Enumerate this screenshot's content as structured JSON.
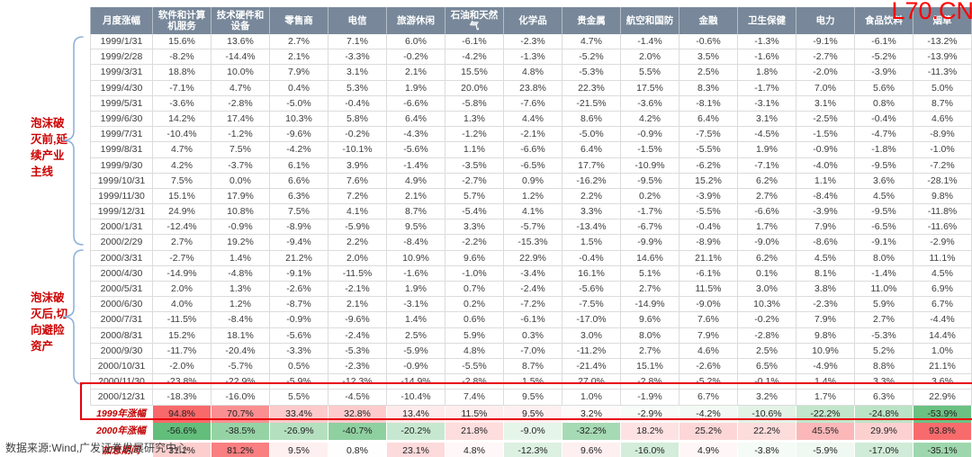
{
  "watermark": "L70.CN",
  "source_note": "数据来源:Wind,广发证券发展研究中心",
  "annotations": {
    "pre_bubble": "泡沫破灭前,延续产业主线",
    "post_bubble": "泡沫破灭后,切向避险资产"
  },
  "colors": {
    "header_bg": "#78889A",
    "heat_positive": "#F8696B",
    "heat_negative": "#63BE7B",
    "heat_mid": "#FFFFFF",
    "summary_label_red": "#C00000",
    "emphasis_box_red": "#E8000A",
    "brace_blue": "#8FB2D9",
    "watermark_red": "#FF0000"
  },
  "chart_data": {
    "type": "heatmap",
    "title": "",
    "value_format": "percent_1dp",
    "heat_scale": {
      "min": -56.6,
      "max": 94.8,
      "mid": 0
    },
    "columns": [
      "月度涨幅",
      "软件和计算机服务",
      "技术硬件和设备",
      "零售商",
      "电信",
      "旅游休闲",
      "石油和天然气",
      "化学品",
      "贵金属",
      "航空和国防",
      "金融",
      "卫生保健",
      "电力",
      "食品饮料",
      "烟草"
    ],
    "monthly_rows": [
      {
        "date": "1999/1/31",
        "values": [
          15.6,
          13.6,
          2.7,
          7.1,
          6.0,
          -6.1,
          -2.3,
          4.7,
          -1.4,
          -0.6,
          -1.3,
          -9.1,
          -6.1,
          -13.2
        ]
      },
      {
        "date": "1999/2/28",
        "values": [
          -8.2,
          -14.4,
          2.1,
          -3.3,
          -0.2,
          -4.2,
          -1.3,
          -5.2,
          2.0,
          3.5,
          -1.6,
          -2.7,
          -5.2,
          -13.9
        ]
      },
      {
        "date": "1999/3/31",
        "values": [
          18.8,
          10.0,
          7.9,
          3.1,
          2.1,
          15.5,
          4.8,
          -5.3,
          5.5,
          2.5,
          1.8,
          -2.0,
          -3.9,
          -11.3
        ]
      },
      {
        "date": "1999/4/30",
        "values": [
          -7.1,
          4.7,
          0.4,
          5.3,
          1.9,
          20.0,
          23.8,
          22.3,
          17.5,
          8.3,
          -1.7,
          7.0,
          5.6,
          5.0
        ]
      },
      {
        "date": "1999/5/31",
        "values": [
          -3.6,
          -2.8,
          -5.0,
          -0.4,
          -6.6,
          -5.8,
          -7.6,
          -21.5,
          -3.6,
          -8.1,
          -3.1,
          3.1,
          0.8,
          8.7
        ]
      },
      {
        "date": "1999/6/30",
        "values": [
          14.2,
          17.4,
          10.3,
          5.8,
          6.4,
          1.3,
          4.4,
          8.6,
          4.2,
          6.4,
          3.1,
          -2.5,
          -0.4,
          4.6
        ]
      },
      {
        "date": "1999/7/31",
        "values": [
          -10.4,
          -1.2,
          -9.6,
          -0.2,
          -4.3,
          -1.2,
          -2.1,
          -5.0,
          -0.9,
          -7.5,
          -4.5,
          -1.5,
          -4.7,
          -8.9
        ]
      },
      {
        "date": "1999/8/31",
        "values": [
          4.7,
          7.5,
          -4.2,
          -10.1,
          -5.6,
          1.1,
          -6.6,
          6.4,
          -1.5,
          -5.5,
          1.9,
          -0.9,
          -1.8,
          -1.0
        ]
      },
      {
        "date": "1999/9/30",
        "values": [
          4.2,
          -3.7,
          6.1,
          3.9,
          -1.4,
          -3.5,
          -6.5,
          17.7,
          -10.9,
          -6.2,
          -7.1,
          -4.0,
          -9.5,
          -7.2
        ]
      },
      {
        "date": "1999/10/31",
        "values": [
          7.5,
          0.0,
          6.6,
          7.6,
          4.9,
          -2.7,
          0.9,
          -16.2,
          -9.5,
          15.2,
          6.2,
          1.1,
          3.6,
          -28.1
        ]
      },
      {
        "date": "1999/11/30",
        "values": [
          15.1,
          17.9,
          6.3,
          7.2,
          2.1,
          5.7,
          1.2,
          2.2,
          0.2,
          -3.9,
          2.7,
          -8.4,
          4.5,
          9.8
        ]
      },
      {
        "date": "1999/12/31",
        "values": [
          24.9,
          10.8,
          7.5,
          4.1,
          8.7,
          -5.4,
          4.1,
          3.3,
          -1.7,
          -5.5,
          -6.6,
          -3.9,
          -9.5,
          -11.8
        ]
      },
      {
        "date": "2000/1/31",
        "values": [
          -12.4,
          -0.9,
          -8.9,
          -5.9,
          9.5,
          3.3,
          -5.7,
          -13.4,
          -6.7,
          -0.4,
          1.7,
          7.9,
          -6.5,
          -11.6
        ]
      },
      {
        "date": "2000/2/29",
        "values": [
          2.7,
          19.2,
          -9.4,
          2.2,
          -8.4,
          -2.2,
          -15.3,
          1.5,
          -9.9,
          -8.9,
          -9.0,
          -8.6,
          -9.1,
          -2.9
        ]
      },
      {
        "date": "2000/3/31",
        "values": [
          -2.7,
          1.4,
          21.2,
          2.0,
          10.9,
          9.6,
          22.9,
          -0.4,
          14.6,
          21.1,
          6.2,
          4.5,
          8.0,
          11.1
        ]
      },
      {
        "date": "2000/4/30",
        "values": [
          -14.9,
          -4.8,
          -9.1,
          -11.5,
          -1.6,
          -1.0,
          -3.4,
          16.1,
          5.1,
          -6.1,
          0.1,
          8.1,
          -1.4,
          4.5
        ]
      },
      {
        "date": "2000/5/31",
        "values": [
          2.0,
          1.3,
          -2.6,
          -2.1,
          1.9,
          0.7,
          -2.4,
          -5.6,
          2.7,
          11.5,
          3.0,
          3.8,
          11.0,
          6.9
        ]
      },
      {
        "date": "2000/6/30",
        "values": [
          4.0,
          1.2,
          -8.7,
          2.1,
          -3.1,
          0.2,
          -7.2,
          -7.5,
          -14.9,
          -9.0,
          10.3,
          -2.3,
          5.9,
          6.7
        ]
      },
      {
        "date": "2000/7/31",
        "values": [
          -11.5,
          -8.4,
          -0.9,
          -9.6,
          1.4,
          0.6,
          -6.1,
          -17.0,
          9.6,
          7.6,
          -0.2,
          7.9,
          2.7,
          -4.4
        ]
      },
      {
        "date": "2000/8/31",
        "values": [
          15.2,
          18.1,
          -5.6,
          -2.4,
          2.5,
          5.9,
          0.3,
          3.0,
          8.0,
          7.9,
          -2.8,
          9.8,
          -5.3,
          14.4
        ]
      },
      {
        "date": "2000/9/30",
        "values": [
          -11.7,
          -20.4,
          -3.3,
          -5.3,
          -5.9,
          4.8,
          -7.0,
          -11.2,
          2.7,
          4.6,
          2.5,
          10.9,
          5.2,
          1.0
        ]
      },
      {
        "date": "2000/10/31",
        "values": [
          -2.0,
          -5.7,
          0.5,
          -2.3,
          -0.9,
          -5.5,
          8.7,
          -21.4,
          15.1,
          -2.6,
          6.5,
          -4.9,
          8.8,
          21.1
        ]
      },
      {
        "date": "2000/11/30",
        "values": [
          -23.8,
          -22.9,
          -5.9,
          -12.3,
          -14.9,
          -2.8,
          1.5,
          27.0,
          -2.8,
          -5.2,
          -0.1,
          1.4,
          3.3,
          3.6
        ]
      },
      {
        "date": "2000/12/31",
        "values": [
          -18.3,
          -16.0,
          5.5,
          -4.5,
          -10.4,
          7.4,
          9.5,
          1.0,
          -1.9,
          6.7,
          3.2,
          1.7,
          6.3,
          22.9
        ]
      }
    ],
    "summary_rows": [
      {
        "label": "1999年涨幅",
        "values": [
          94.8,
          70.7,
          33.4,
          32.8,
          13.4,
          11.5,
          9.5,
          3.2,
          -2.9,
          -4.2,
          -10.6,
          -22.2,
          -24.8,
          -53.9
        ]
      },
      {
        "label": "2000年涨幅",
        "values": [
          -56.6,
          -38.5,
          -26.9,
          -40.7,
          -20.2,
          21.8,
          -9.0,
          -32.2,
          18.2,
          25.2,
          22.2,
          45.5,
          29.9,
          93.8
        ]
      },
      {
        "label": "加息期间",
        "values": [
          31.1,
          81.2,
          9.5,
          0.8,
          23.1,
          4.8,
          -12.3,
          9.6,
          -16.0,
          4.9,
          -3.8,
          -5.9,
          -17.0,
          -35.1
        ]
      }
    ],
    "row_groups": [
      {
        "label": "泡沫破灭前,延续产业主线",
        "rows": [
          "1999/1/31",
          "2000/3/31"
        ]
      },
      {
        "label": "泡沫破灭后,切向避险资产",
        "rows": [
          "2000/4/30",
          "2000/12/31"
        ]
      }
    ]
  }
}
